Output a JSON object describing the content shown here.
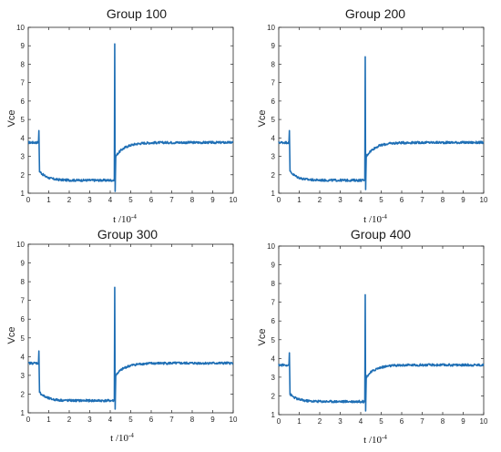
{
  "chart_data": [
    {
      "type": "line",
      "title": "Group 100",
      "ylabel": "Vce",
      "xlabel": "t /10",
      "xlabel_exp": "-4",
      "xlim": [
        0,
        10
      ],
      "ylim": [
        1,
        10
      ],
      "xticks": [
        0,
        1,
        2,
        3,
        4,
        5,
        6,
        7,
        8,
        9,
        10
      ],
      "yticks": [
        1,
        2,
        3,
        4,
        5,
        6,
        7,
        8,
        9,
        10
      ],
      "grid": false,
      "color": "#1f6fb5",
      "waveform": {
        "baseline_start": 3.75,
        "turnoff_t": 0.5,
        "turnoff_spike": 4.4,
        "decay_start": 2.2,
        "on_level": 1.7,
        "turnon_t": 4.2,
        "turnon_spike": 9.1,
        "turnon_dip": 1.1,
        "recover_start": 3.0,
        "final_level": 3.75
      }
    },
    {
      "type": "line",
      "title": "Group 200",
      "ylabel": "Vce",
      "xlabel": "t /10",
      "xlabel_exp": "-4",
      "xlim": [
        0,
        10
      ],
      "ylim": [
        1,
        10
      ],
      "xticks": [
        0,
        1,
        2,
        3,
        4,
        5,
        6,
        7,
        8,
        9,
        10
      ],
      "yticks": [
        1,
        2,
        3,
        4,
        5,
        6,
        7,
        8,
        9,
        10
      ],
      "grid": false,
      "color": "#1f6fb5",
      "waveform": {
        "baseline_start": 3.75,
        "turnoff_t": 0.5,
        "turnoff_spike": 4.4,
        "decay_start": 2.2,
        "on_level": 1.7,
        "turnon_t": 4.2,
        "turnon_spike": 8.4,
        "turnon_dip": 1.2,
        "recover_start": 3.0,
        "final_level": 3.75
      }
    },
    {
      "type": "line",
      "title": "Group 300",
      "ylabel": "Vce",
      "xlabel": "t /10",
      "xlabel_exp": "-4",
      "xlim": [
        0,
        10
      ],
      "ylim": [
        1,
        10
      ],
      "xticks": [
        0,
        1,
        2,
        3,
        4,
        5,
        6,
        7,
        8,
        9,
        10
      ],
      "yticks": [
        1,
        2,
        3,
        4,
        5,
        6,
        7,
        8,
        9,
        10
      ],
      "grid": false,
      "color": "#1f6fb5",
      "waveform": {
        "baseline_start": 3.65,
        "turnoff_t": 0.5,
        "turnoff_spike": 4.3,
        "decay_start": 2.1,
        "on_level": 1.65,
        "turnon_t": 4.2,
        "turnon_spike": 7.7,
        "turnon_dip": 1.2,
        "recover_start": 3.0,
        "final_level": 3.65
      }
    },
    {
      "type": "line",
      "title": "Group 400",
      "ylabel": "Vce",
      "xlabel": "t /10",
      "xlabel_exp": "-4",
      "xlim": [
        0,
        10
      ],
      "ylim": [
        1,
        10
      ],
      "xticks": [
        0,
        1,
        2,
        3,
        4,
        5,
        6,
        7,
        8,
        9,
        10
      ],
      "yticks": [
        1,
        2,
        3,
        4,
        5,
        6,
        7,
        8,
        9,
        10
      ],
      "grid": false,
      "color": "#1f6fb5",
      "waveform": {
        "baseline_start": 3.65,
        "turnoff_t": 0.5,
        "turnoff_spike": 4.3,
        "decay_start": 2.1,
        "on_level": 1.7,
        "turnon_t": 4.2,
        "turnon_spike": 7.4,
        "turnon_dip": 1.2,
        "recover_start": 3.0,
        "final_level": 3.65
      }
    }
  ]
}
